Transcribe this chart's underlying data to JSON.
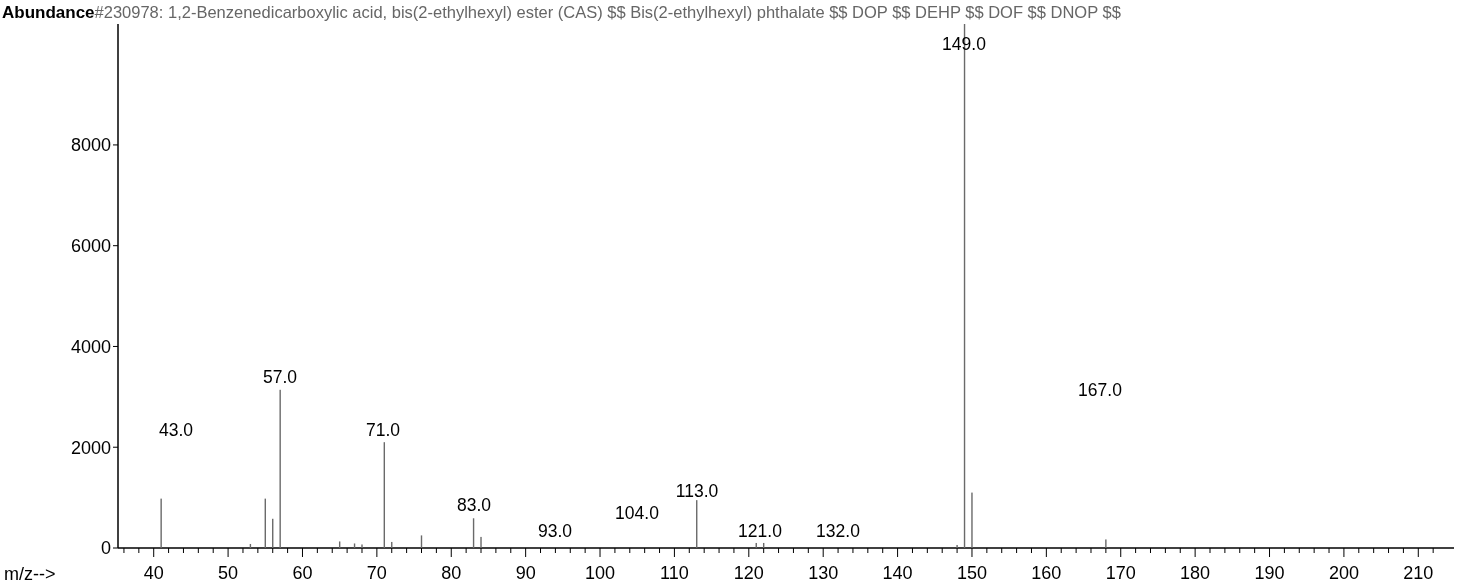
{
  "chart_data": {
    "type": "bar",
    "title": "#230978: 1,2-Benzenedicarboxylic acid, bis(2-ethylhexyl) ester (CAS) $$ Bis(2-ethylhexyl) phthalate $$ DOP $$ DEHP $$ DOF $$ DNOP $$",
    "ylabel": "Abundance",
    "xlabel": "m/z-->",
    "x": [
      41,
      53,
      55,
      56,
      57,
      65,
      67,
      68,
      71,
      72,
      76,
      83,
      84,
      113,
      121,
      122,
      148,
      149,
      150,
      168
    ],
    "series": [
      {
        "color": "#6a6a6a",
        "values": [
          980,
          80,
          980,
          580,
          3140,
          130,
          90,
          70,
          2100,
          120,
          250,
          590,
          220,
          950,
          100,
          100,
          60,
          10400,
          1100,
          170
        ]
      }
    ],
    "xlim": [
      35.2,
      214.8
    ],
    "ylim": [
      0,
      10400
    ],
    "yticks": [
      0,
      2000,
      4000,
      6000,
      8000
    ],
    "xticks": [
      {
        "value": 36,
        "label": null
      },
      {
        "value": 38,
        "label": null
      },
      40,
      {
        "value": 42,
        "label": null
      },
      {
        "value": 44,
        "label": null
      },
      {
        "value": 46,
        "label": null
      },
      {
        "value": 48,
        "label": null
      },
      50,
      {
        "value": 52,
        "label": null
      },
      {
        "value": 54,
        "label": null
      },
      {
        "value": 56,
        "label": null
      },
      {
        "value": 58,
        "label": null
      },
      60,
      {
        "value": 62,
        "label": null
      },
      {
        "value": 64,
        "label": null
      },
      {
        "value": 66,
        "label": null
      },
      {
        "value": 68,
        "label": null
      },
      70,
      {
        "value": 72,
        "label": null
      },
      {
        "value": 74,
        "label": null
      },
      {
        "value": 76,
        "label": null
      },
      {
        "value": 78,
        "label": null
      },
      80,
      {
        "value": 82,
        "label": null
      },
      {
        "value": 84,
        "label": null
      },
      {
        "value": 86,
        "label": null
      },
      {
        "value": 88,
        "label": null
      },
      90,
      {
        "value": 92,
        "label": null
      },
      {
        "value": 94,
        "label": null
      },
      {
        "value": 96,
        "label": null
      },
      {
        "value": 98,
        "label": null
      },
      100,
      {
        "value": 102,
        "label": null
      },
      {
        "value": 104,
        "label": null
      },
      {
        "value": 106,
        "label": null
      },
      {
        "value": 108,
        "label": null
      },
      110,
      {
        "value": 112,
        "label": null
      },
      {
        "value": 114,
        "label": null
      },
      {
        "value": 116,
        "label": null
      },
      {
        "value": 118,
        "label": null
      },
      120,
      {
        "value": 122,
        "label": null
      },
      {
        "value": 124,
        "label": null
      },
      {
        "value": 126,
        "label": null
      },
      {
        "value": 128,
        "label": null
      },
      130,
      {
        "value": 132,
        "label": null
      },
      {
        "value": 134,
        "label": null
      },
      {
        "value": 136,
        "label": null
      },
      {
        "value": 138,
        "label": null
      },
      140,
      {
        "value": 142,
        "label": null
      },
      {
        "value": 144,
        "label": null
      },
      {
        "value": 146,
        "label": null
      },
      {
        "value": 148,
        "label": null
      },
      150,
      {
        "value": 152,
        "label": null
      },
      {
        "value": 154,
        "label": null
      },
      {
        "value": 156,
        "label": null
      },
      {
        "value": 158,
        "label": null
      },
      160,
      {
        "value": 162,
        "label": null
      },
      {
        "value": 164,
        "label": null
      },
      {
        "value": 166,
        "label": null
      },
      {
        "value": 168,
        "label": null
      },
      170,
      {
        "value": 172,
        "label": null
      },
      {
        "value": 174,
        "label": null
      },
      {
        "value": 176,
        "label": null
      },
      {
        "value": 178,
        "label": null
      },
      180,
      {
        "value": 182,
        "label": null
      },
      {
        "value": 184,
        "label": null
      },
      {
        "value": 186,
        "label": null
      },
      {
        "value": 188,
        "label": null
      },
      190,
      {
        "value": 192,
        "label": null
      },
      {
        "value": 194,
        "label": null
      },
      {
        "value": 196,
        "label": null
      },
      {
        "value": 198,
        "label": null
      },
      200,
      {
        "value": 202,
        "label": null
      },
      {
        "value": 204,
        "label": null
      },
      {
        "value": 206,
        "label": null
      },
      {
        "value": 208,
        "label": null
      },
      210,
      {
        "value": 212,
        "label": null
      }
    ],
    "annotations": [
      "149.0",
      "43.0",
      "57.0",
      "71.0",
      "83.0",
      "93.0",
      "104.0",
      "113.0",
      "121.0",
      "132.0",
      "167.0"
    ]
  }
}
